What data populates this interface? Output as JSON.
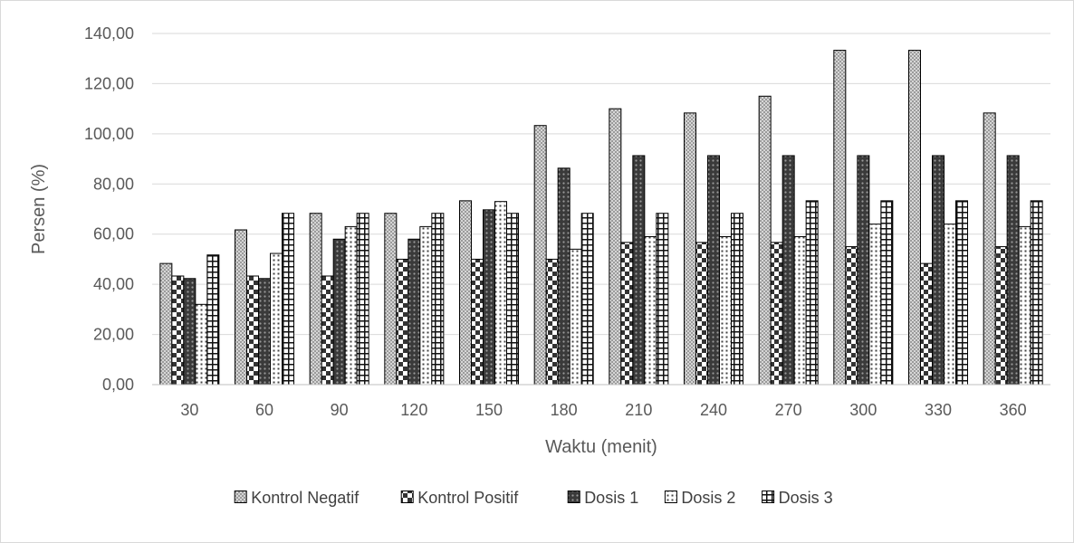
{
  "chart_data": {
    "type": "bar",
    "xlabel": "Waktu (menit)",
    "ylabel": "Persen (%)",
    "ylim": [
      0,
      140
    ],
    "yticks": [
      "0,00",
      "20,00",
      "40,00",
      "60,00",
      "80,00",
      "100,00",
      "120,00",
      "140,00"
    ],
    "grid": true,
    "legend_position": "bottom",
    "categories": [
      "30",
      "60",
      "90",
      "120",
      "150",
      "180",
      "210",
      "240",
      "270",
      "300",
      "330",
      "360"
    ],
    "series": [
      {
        "name": "Kontrol Negatif",
        "pattern": "crosshatch-light",
        "values": [
          48.3,
          61.7,
          68.3,
          68.3,
          73.3,
          103.3,
          110.0,
          108.3,
          115.0,
          133.3,
          133.3,
          108.3
        ]
      },
      {
        "name": "Kontrol Positif",
        "pattern": "checker",
        "values": [
          43.3,
          43.3,
          43.3,
          50.0,
          50.0,
          50.0,
          56.7,
          56.7,
          56.7,
          55.0,
          48.3,
          55.0
        ]
      },
      {
        "name": "Dosis 1",
        "pattern": "dark-dots",
        "values": [
          42.3,
          42.3,
          58.0,
          58.0,
          69.7,
          86.3,
          91.3,
          91.3,
          91.3,
          91.3,
          91.3,
          91.3
        ]
      },
      {
        "name": "Dosis 2",
        "pattern": "light-dots",
        "values": [
          32.0,
          52.3,
          63.0,
          63.0,
          73.0,
          54.0,
          59.0,
          59.0,
          59.0,
          64.0,
          64.0,
          63.0
        ]
      },
      {
        "name": "Dosis 3",
        "pattern": "grid-boxes",
        "values": [
          51.7,
          68.3,
          68.3,
          68.3,
          68.3,
          68.3,
          68.3,
          68.3,
          73.3,
          73.3,
          73.3,
          73.3
        ]
      }
    ]
  }
}
